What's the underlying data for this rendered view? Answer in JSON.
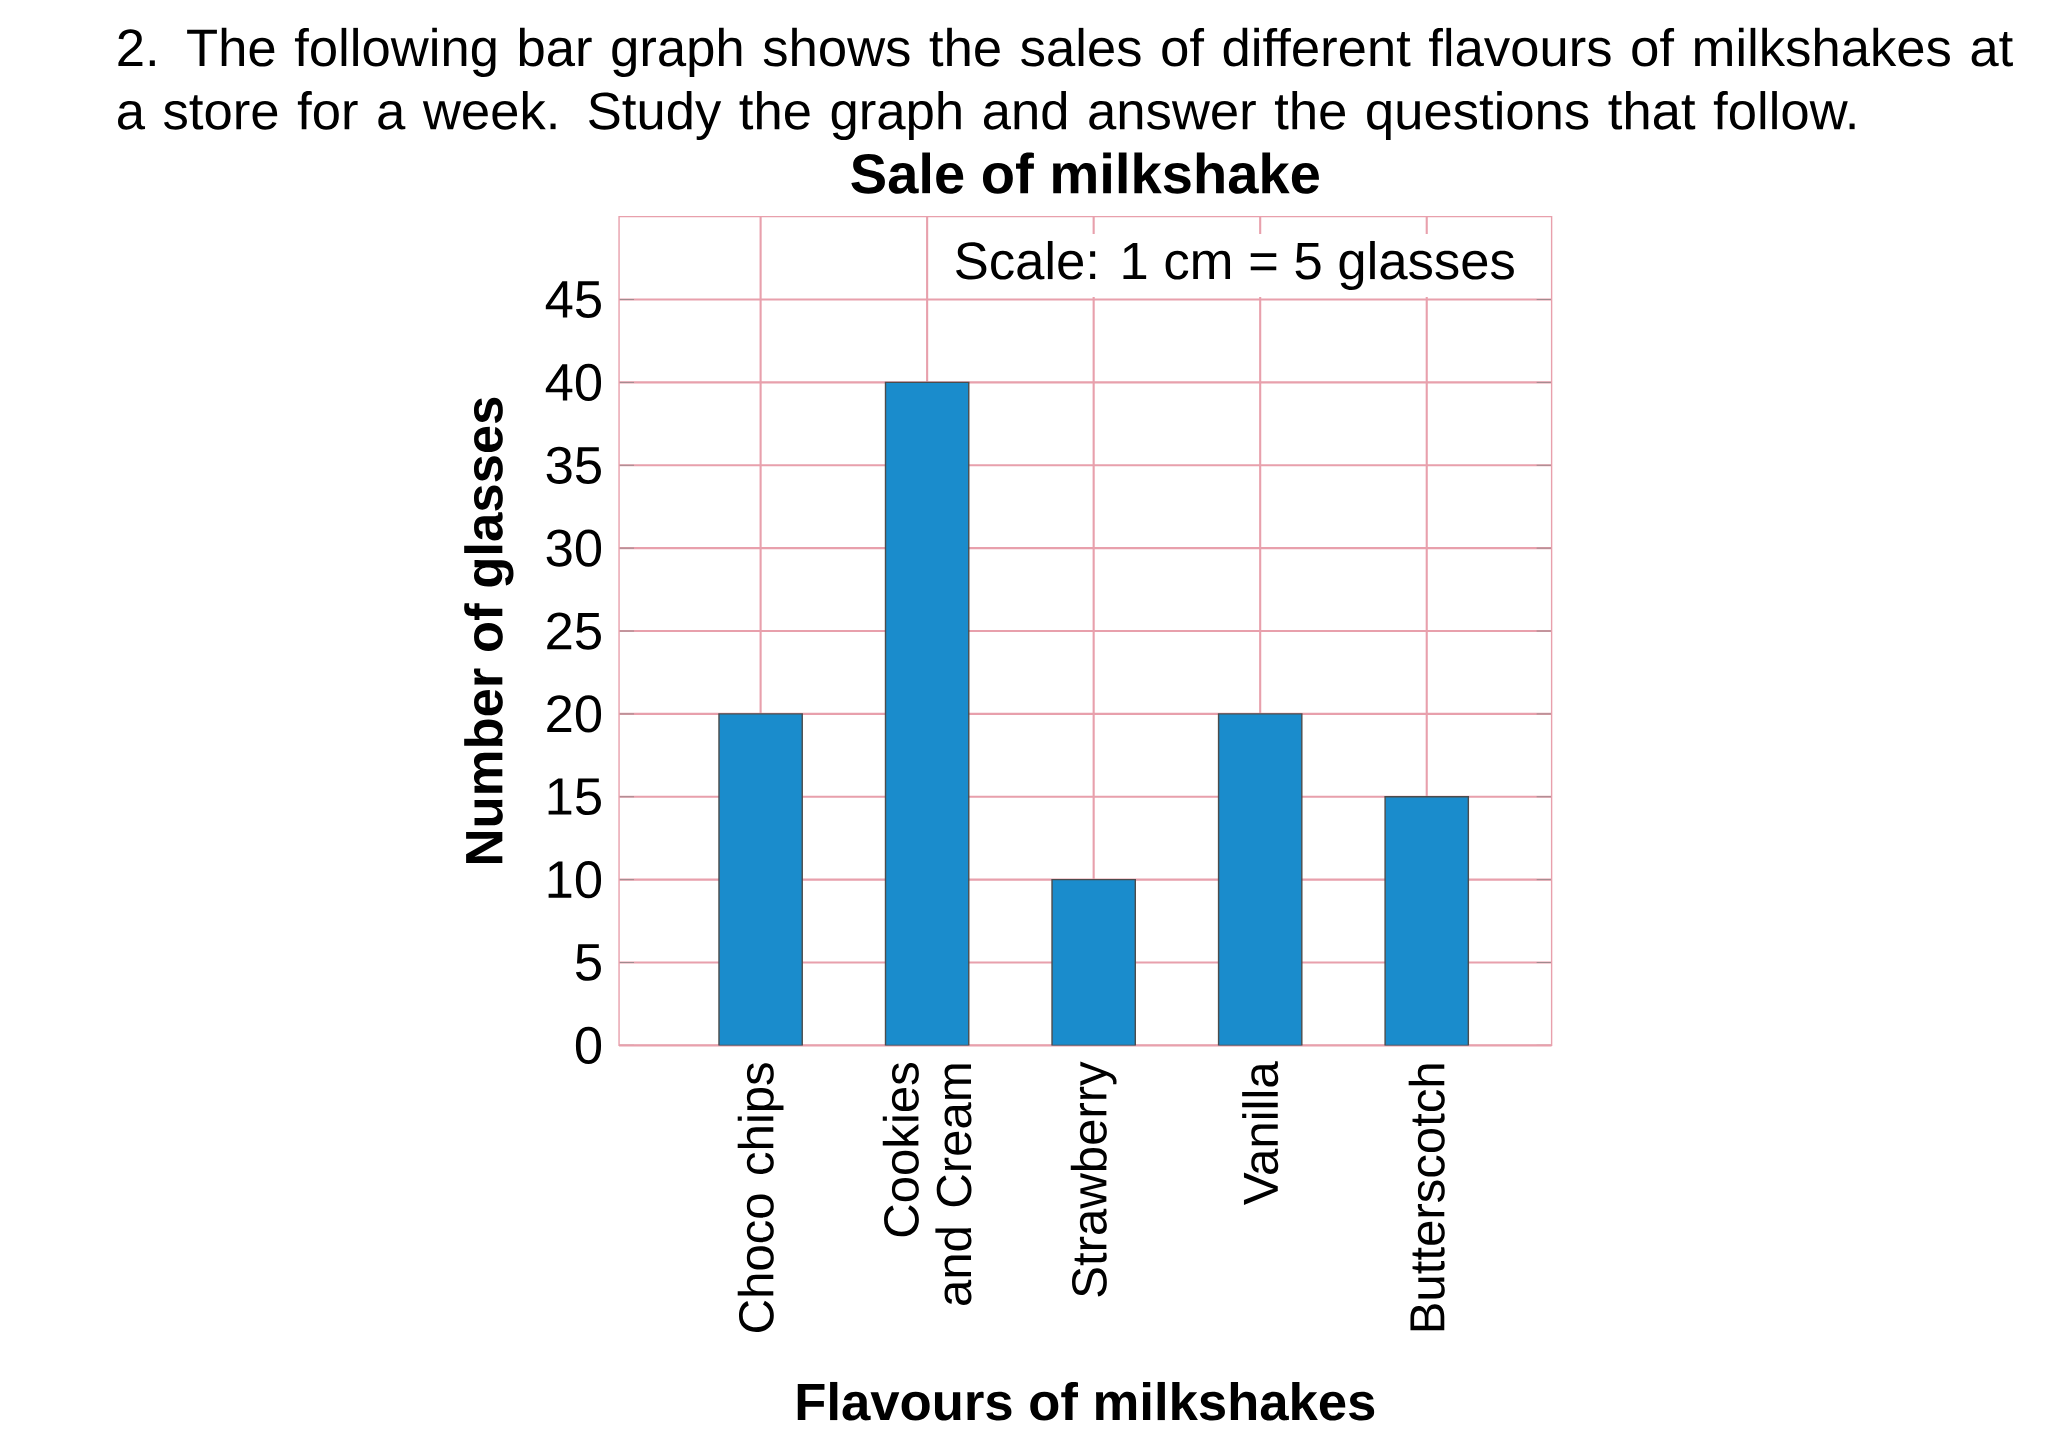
{
  "chart_data": {
    "type": "bar",
    "title": "Sale of milkshake",
    "xlabel": "Flavours of milkshakes",
    "ylabel": "Number of glasses",
    "categories": [
      "Choco chips",
      "Cookies and Cream",
      "Strawberry",
      "Vanilla",
      "Butterscotch"
    ],
    "values": [
      20,
      40,
      10,
      20,
      15
    ],
    "color": "#1a8ccc",
    "ylim": [
      0,
      50
    ],
    "yticks": [
      0,
      5,
      10,
      15,
      20,
      25,
      30,
      35,
      40,
      45
    ],
    "grid": true,
    "annotations": [
      "2. The following bar graph shows the sales of different flavours of milkshakes at a store for a week. Study the graph and answer the questions that follow.",
      "Scale: 1 cm = 5 glasses"
    ]
  }
}
